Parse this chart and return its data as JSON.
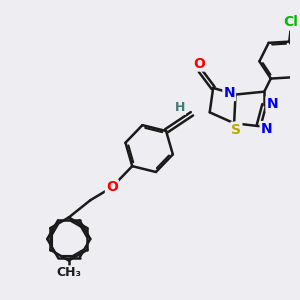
{
  "bg_color": "#eeeef2",
  "bond_color": "#1a1a1a",
  "bond_width": 1.8,
  "atom_colors": {
    "O": "#ff0000",
    "N": "#0000ee",
    "S": "#bbaa00",
    "Cl": "#00bb00",
    "H": "#447777",
    "C": "#1a1a1a"
  },
  "font_size": 10,
  "figsize": [
    3.0,
    3.0
  ],
  "dpi": 100,
  "xlim": [
    0,
    10
  ],
  "ylim": [
    0,
    10
  ]
}
